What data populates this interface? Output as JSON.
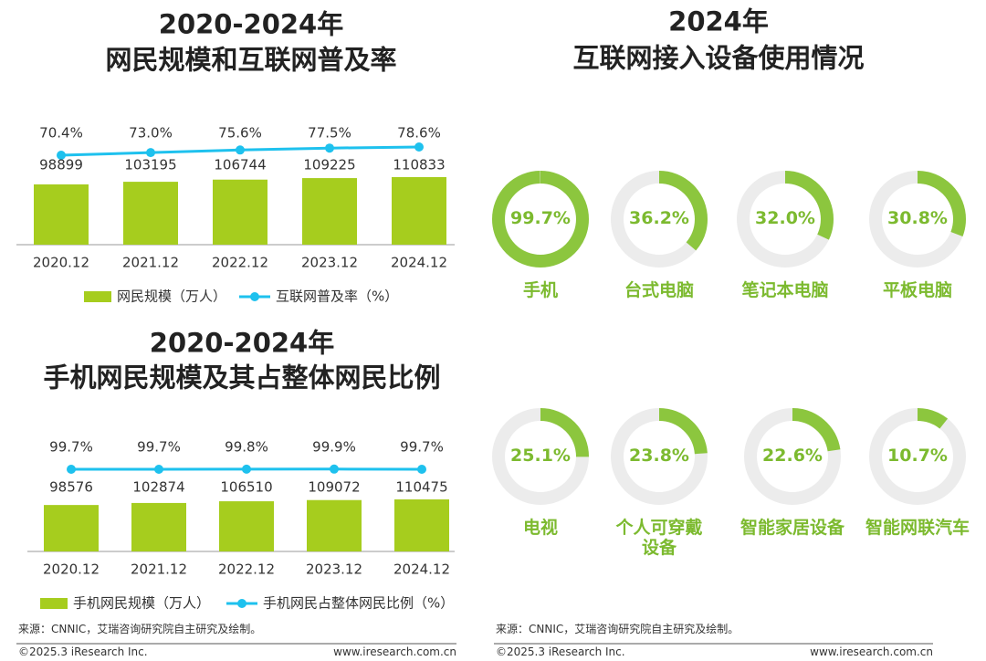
{
  "chart_data": [
    {
      "type": "bar",
      "title": [
        "2020-2024年",
        "网民规模和互联网普及率"
      ],
      "categories": [
        "2020.12",
        "2021.12",
        "2022.12",
        "2023.12",
        "2024.12"
      ],
      "series": [
        {
          "name": "网民规模（万人）",
          "type": "bar",
          "color": "#a6cd1e",
          "values": [
            98899,
            103195,
            106744,
            109225,
            110833
          ]
        },
        {
          "name": "互联网普及率（%）",
          "type": "line",
          "axis": "y2",
          "color": "#1ec1ee",
          "values": [
            70.4,
            73.0,
            75.6,
            77.5,
            78.6
          ],
          "value_labels": [
            "70.4%",
            "73.0%",
            "75.6%",
            "77.5%",
            "78.6%"
          ]
        }
      ]
    },
    {
      "type": "bar",
      "title": [
        "2020-2024年",
        "手机网民规模及其占整体网民比例"
      ],
      "categories": [
        "2020.12",
        "2021.12",
        "2022.12",
        "2023.12",
        "2024.12"
      ],
      "series": [
        {
          "name": "手机网民规模（万人）",
          "type": "bar",
          "color": "#a6cd1e",
          "values": [
            98576,
            102874,
            106510,
            109072,
            110475
          ]
        },
        {
          "name": "手机网民占整体网民比例（%）",
          "type": "line",
          "axis": "y2",
          "color": "#1ec1ee",
          "values": [
            99.7,
            99.7,
            99.8,
            99.9,
            99.7
          ],
          "value_labels": [
            "99.7%",
            "99.7%",
            "99.8%",
            "99.9%",
            "99.7%"
          ]
        }
      ]
    },
    {
      "type": "donut",
      "title": [
        "2024年",
        "互联网接入设备使用情况"
      ],
      "color": "#8cc63e",
      "track_color": "#ececec",
      "categories": [
        "手机",
        "台式电脑",
        "笔记本电脑",
        "平板电脑",
        "电视",
        "个人可穿戴\n设备",
        "智能家居设备",
        "智能网联汽车"
      ],
      "values": [
        99.7,
        36.2,
        32.0,
        30.8,
        25.1,
        23.8,
        22.6,
        10.7
      ],
      "value_labels": [
        "99.7%",
        "36.2%",
        "32.0%",
        "30.8%",
        "25.1%",
        "23.8%",
        "22.6%",
        "10.7%"
      ]
    }
  ],
  "notes": [
    {
      "source": "来源：CNNIC，艾瑞咨询研究院自主研究及绘制。",
      "copyright": "©2025.3 iResearch Inc.",
      "website": "www.iresearch.com.cn"
    },
    {
      "source": "来源：CNNIC，艾瑞咨询研究院自主研究及绘制。",
      "copyright": "©2025.3 iResearch Inc.",
      "website": "www.iresearch.com.cn"
    }
  ]
}
